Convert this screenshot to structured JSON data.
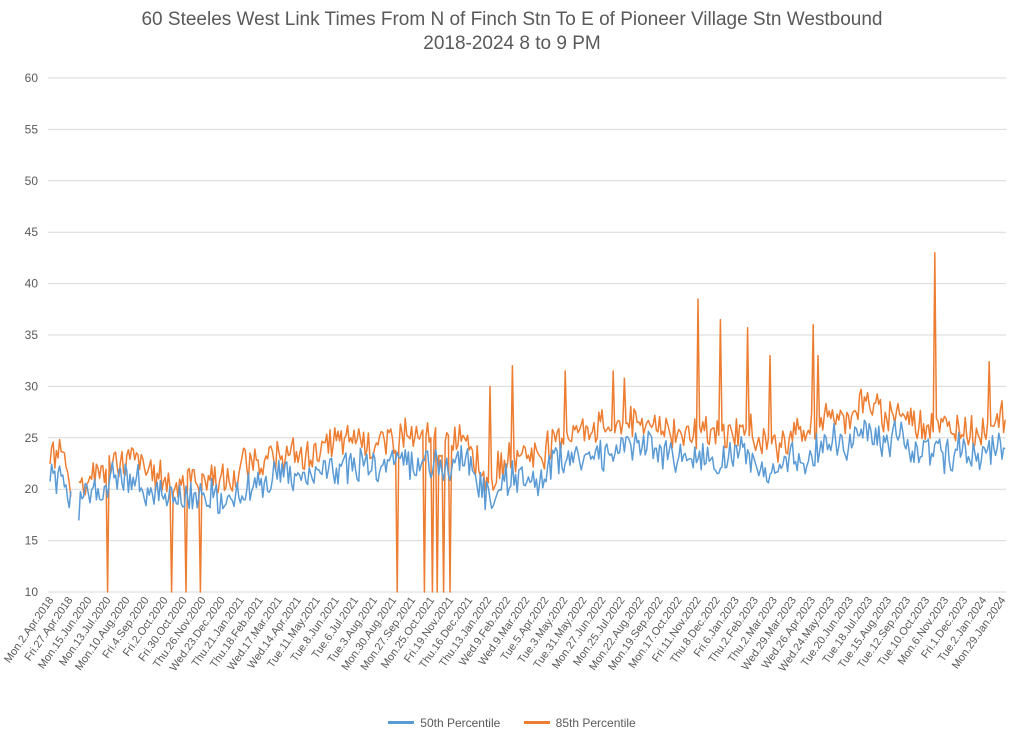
{
  "chart_data": {
    "type": "line",
    "title": "60 Steeles West Link Times From N of Finch Stn To E of Pioneer Village Stn Westbound",
    "subtitle": "2018-2024 8 to 9 PM",
    "xlabel": "",
    "ylabel": "",
    "ylim": [
      10,
      60
    ],
    "yticks": [
      10,
      15,
      20,
      25,
      30,
      35,
      40,
      45,
      50,
      55,
      60
    ],
    "grid": true,
    "legend_position": "bottom",
    "x_tick_labels": [
      "Mon.2.Apr.2018",
      "Fri.27.Apr.2018",
      "Mon.15.Jun.2020",
      "Mon.13.Jul.2020",
      "Mon.10.Aug.2020",
      "Fri.4.Sep.2020",
      "Fri.2.Oct.2020",
      "Fri.30.Oct.2020",
      "Thu.26.Nov.2020",
      "Wed.23.Dec.2020",
      "Thu.21.Jan.2021",
      "Thu.18.Feb.2021",
      "Wed.17.Mar.2021",
      "Wed.14.Apr.2021",
      "Tue.11.May.2021",
      "Tue.8.Jun.2021",
      "Tue.6.Jul.2021",
      "Tue.3.Aug.2021",
      "Mon.30.Aug.2021",
      "Mon.27.Sep.2021",
      "Mon.25.Oct.2021",
      "Fri.19.Nov.2021",
      "Thu.16.Dec.2021",
      "Thu.13.Jan.2022",
      "Wed.9.Feb.2022",
      "Wed.9.Mar.2022",
      "Tue.5.Apr.2022",
      "Tue.3.May.2022",
      "Tue.31.May.2022",
      "Mon.27.Jun.2022",
      "Mon.25.Jul.2022",
      "Mon.22.Aug.2022",
      "Mon.19.Sep.2022",
      "Mon.17.Oct.2022",
      "Fri.11.Nov.2022",
      "Thu.8.Dec.2022",
      "Fri.6.Jan.2023",
      "Thu.2.Feb.2023",
      "Thu.2.Mar.2023",
      "Wed.29.Mar.2023",
      "Wed.26.Apr.2023",
      "Wed.24.May.2023",
      "Tue.20.Jun.2023",
      "Tue.18.Jul.2023",
      "Tue.15.Aug.2023",
      "Tue.12.Sep.2023",
      "Tue.10.Oct.2023",
      "Mon.6.Nov.2023",
      "Fri.1.Dec.2023",
      "Tue.2.Jan.2024",
      "Mon.29.Jan.2024"
    ],
    "series": [
      {
        "name": "50th Percentile",
        "color": "#5B9BD5",
        "values": [
          21.5,
          20.8,
          21.3,
          18.8,
          18.4,
          19.6,
          20.2,
          20.1,
          20.7,
          21.0,
          20.9,
          21.2,
          20.5,
          19.8,
          19.5,
          19.3,
          18.9,
          19.2,
          19.5,
          19.0,
          18.8,
          19.3,
          19.0,
          18.6,
          18.9,
          19.8,
          20.4,
          20.5,
          20.3,
          20.8,
          21.2,
          21.0,
          21.1,
          20.6,
          21.5,
          21.4,
          21.8,
          22.0,
          22.0,
          22.3,
          22.6,
          22.1,
          21.9,
          22.1,
          22.4,
          22.8,
          23.0,
          22.2,
          22.5,
          22.7,
          22.3,
          21.9,
          22.5,
          23.0,
          22.6,
          21.2,
          19.5,
          19.5,
          20.2,
          20.8,
          21.2,
          21.5,
          21.3,
          21.0,
          21.9,
          22.5,
          22.6,
          22.8,
          23.1,
          23.5,
          23.0,
          23.3,
          23.5,
          23.3,
          23.8,
          24.0,
          23.8,
          24.0,
          23.9,
          23.3,
          23.5,
          23.2,
          23.1,
          23.4,
          23.0,
          22.8,
          22.7,
          22.9,
          23.0,
          23.3,
          23.3,
          22.3,
          22.4,
          22.0,
          21.9,
          22.7,
          22.9,
          22.6,
          23.2,
          23.8,
          24.3,
          24.5,
          24.0,
          24.4,
          25.0,
          25.5,
          25.1,
          24.7,
          24.8,
          25.3,
          24.9,
          24.0,
          23.9,
          24.0,
          24.2,
          23.3,
          23.0,
          23.7,
          23.4,
          23.3,
          23.5,
          24.0,
          24.3,
          24.2
        ],
        "dips": [],
        "spikes": []
      },
      {
        "name": "85th Percentile",
        "color": "#ED7D31",
        "values": [
          23.7,
          23.4,
          23.7,
          20.2,
          20.3,
          21.0,
          21.7,
          21.8,
          22.2,
          22.6,
          22.5,
          23.2,
          22.3,
          21.6,
          21.4,
          21.0,
          20.6,
          20.9,
          21.2,
          20.9,
          20.8,
          21.3,
          20.8,
          20.5,
          20.6,
          22.4,
          23.0,
          22.9,
          22.8,
          23.1,
          23.5,
          23.0,
          23.4,
          22.7,
          23.8,
          23.6,
          24.2,
          24.7,
          24.4,
          24.9,
          25.3,
          24.5,
          24.3,
          24.6,
          24.9,
          25.3,
          25.5,
          24.6,
          24.8,
          25.2,
          24.7,
          24.1,
          24.9,
          25.4,
          25.0,
          23.1,
          21.0,
          21.3,
          22.0,
          22.6,
          23.2,
          23.7,
          23.5,
          23.1,
          24.1,
          25.0,
          25.2,
          25.5,
          25.9,
          26.3,
          25.8,
          26.2,
          26.3,
          26.1,
          26.6,
          26.9,
          26.6,
          26.8,
          26.6,
          25.7,
          26.0,
          25.7,
          25.5,
          25.8,
          25.3,
          25.1,
          25.0,
          25.3,
          25.4,
          25.8,
          25.8,
          24.7,
          24.8,
          24.3,
          24.2,
          25.1,
          25.4,
          25.0,
          25.7,
          26.4,
          27.0,
          27.4,
          26.7,
          27.3,
          28.1,
          28.5,
          27.8,
          27.1,
          27.3,
          27.9,
          27.3,
          26.5,
          26.4,
          26.5,
          26.8,
          25.8,
          25.4,
          26.2,
          25.8,
          25.7,
          25.9,
          26.5,
          26.9,
          26.8
        ],
        "dips": [
          [
            108,
            10
          ],
          [
            172,
            10
          ],
          [
            186,
            10
          ],
          [
            200,
            10
          ],
          [
            397,
            10
          ],
          [
            425,
            10
          ],
          [
            432,
            10
          ],
          [
            438,
            10
          ],
          [
            444,
            10
          ],
          [
            450,
            10
          ]
        ],
        "spikes": [
          [
            490,
            30
          ],
          [
            512,
            32
          ],
          [
            566,
            31.5
          ],
          [
            614,
            31.5
          ],
          [
            624,
            30.8
          ],
          [
            698,
            38.5
          ],
          [
            720,
            36.5
          ],
          [
            748,
            35.7
          ],
          [
            770,
            33
          ],
          [
            813,
            36
          ],
          [
            818,
            33
          ],
          [
            935,
            43
          ],
          [
            990,
            32.4
          ]
        ]
      }
    ]
  }
}
